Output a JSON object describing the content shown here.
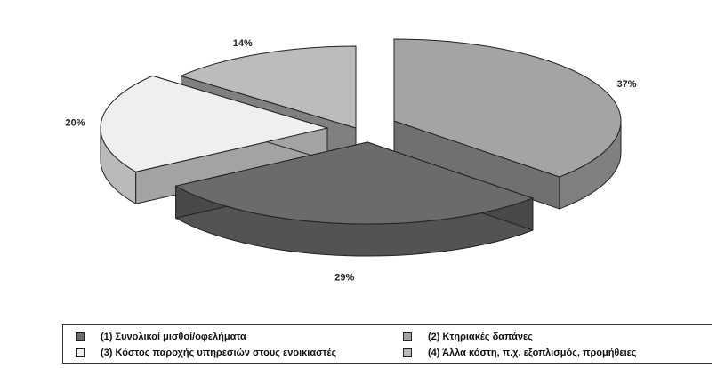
{
  "chart_data": {
    "type": "pie",
    "title": "",
    "slices": [
      {
        "label": "(2) Κτηριακές δαπάνες",
        "value": 37,
        "value_label": "37%",
        "color": "#a4a4a4"
      },
      {
        "label": "(1) Συνολικοί μισθοί/οφελήματα",
        "value": 29,
        "value_label": "29%",
        "color": "#6b6b6b"
      },
      {
        "label": "(3) Κόστος παροχής υπηρεσιών στους ενοικιαστές",
        "value": 20,
        "value_label": "20%",
        "color": "#efefef"
      },
      {
        "label": "(4) Άλλα κόστη, π.χ. εξοπλισμός, προμήθειες",
        "value": 14,
        "value_label": "14%",
        "color": "#bcbcbc"
      }
    ],
    "legend": {
      "placement": "bottom",
      "items": [
        {
          "label": "(1) Συνολικοί μισθοί/οφελήματα",
          "color": "#6b6b6b"
        },
        {
          "label": "(2) Κτηριακές δαπάνες",
          "color": "#a4a4a4"
        },
        {
          "label": "(3) Κόστος παροχής υπηρεσιών στους ενοικιαστές",
          "color": "#efefef"
        },
        {
          "label": "(4) Άλλα κόστη, π.χ. εξοπλισμός, προμήθειες",
          "color": "#bcbcbc"
        }
      ]
    }
  }
}
